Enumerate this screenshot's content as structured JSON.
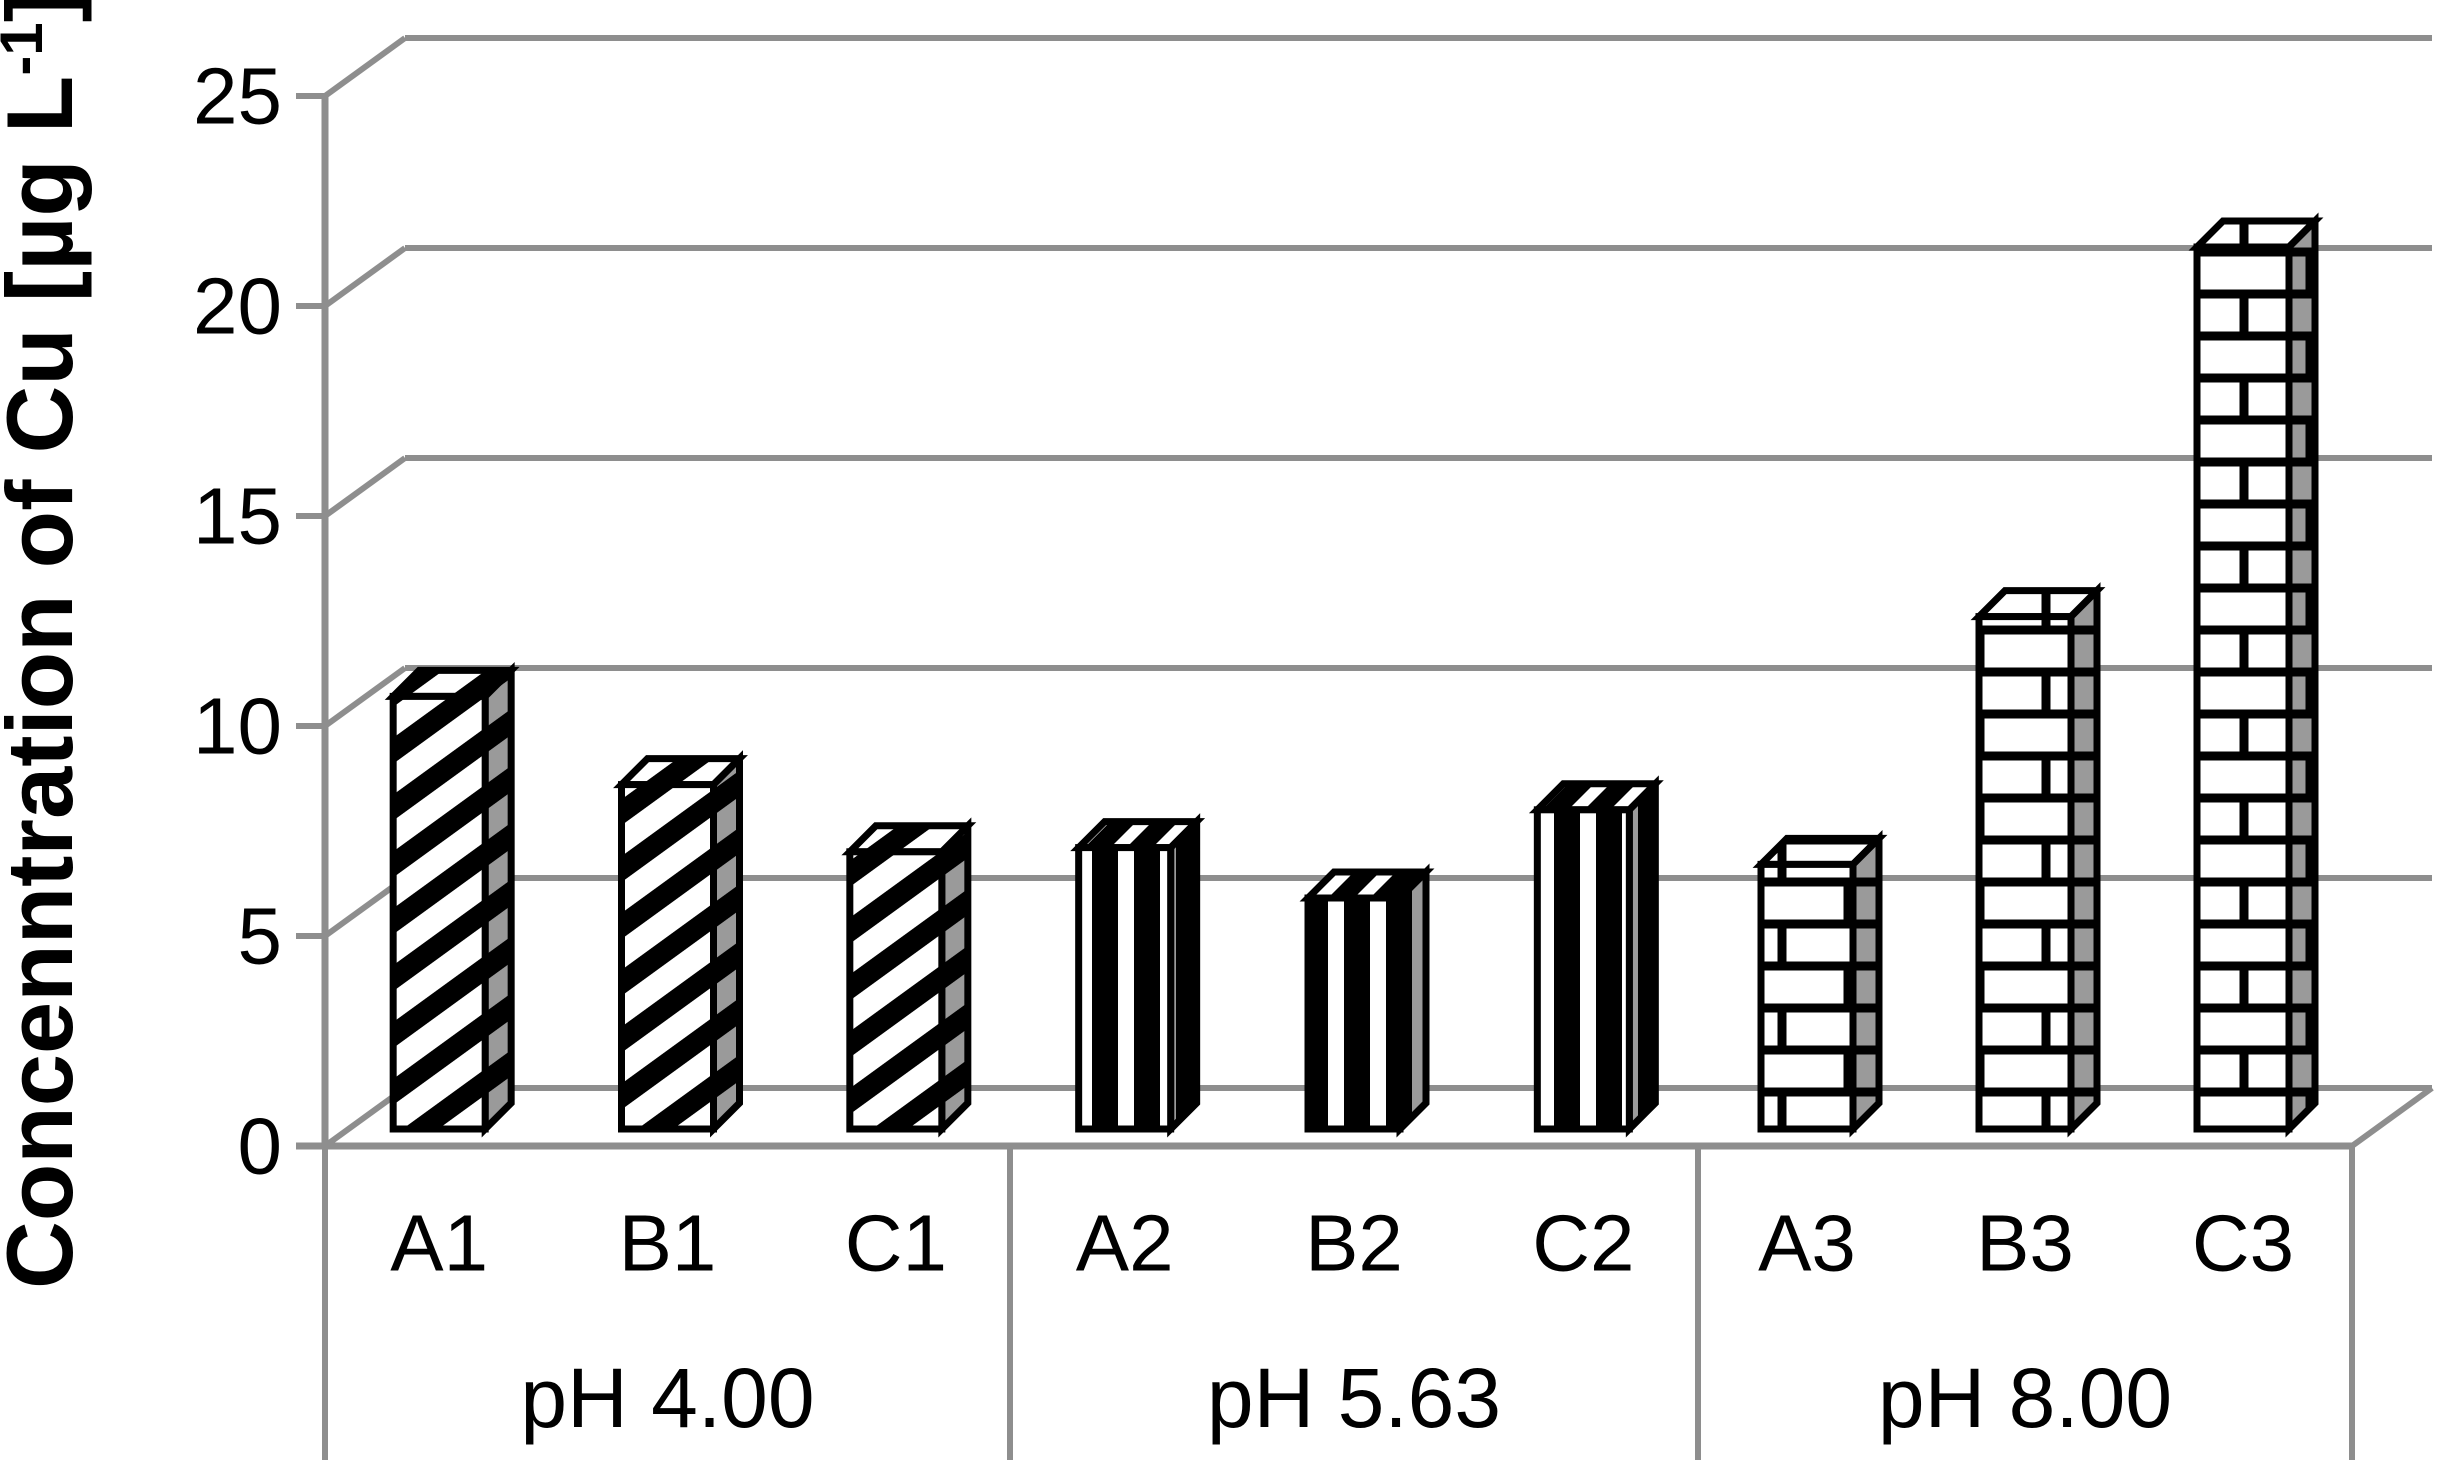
{
  "chart_data": {
    "type": "bar",
    "style": "3d-column-excel",
    "title": "",
    "ylabel": "Concenntration of Cu [µg L-1]",
    "ylabel_main": "Concenntration of Cu [µg L",
    "ylabel_sup": "-1",
    "ylabel_close": "]",
    "xlabel": "",
    "ylim": [
      0,
      25
    ],
    "yticks": [
      0,
      5,
      10,
      15,
      20,
      25
    ],
    "ytick_labels": [
      "0",
      "5",
      "10",
      "15",
      "20",
      "25"
    ],
    "grid": "horizontal-back-wall",
    "legend": "none",
    "categories": [
      "A1",
      "B1",
      "C1",
      "A2",
      "B2",
      "C2",
      "A3",
      "B3",
      "C3"
    ],
    "values": [
      10.3,
      8.2,
      6.6,
      6.7,
      5.5,
      7.6,
      6.3,
      12.2,
      21.0
    ],
    "groups": [
      {
        "label": "pH 4.00",
        "pattern": "diagonal",
        "bars": [
          {
            "label": "A1",
            "value": 10.3
          },
          {
            "label": "B1",
            "value": 8.2
          },
          {
            "label": "C1",
            "value": 6.6
          }
        ]
      },
      {
        "label": "pH 5.63",
        "pattern": "vertical",
        "bars": [
          {
            "label": "A2",
            "value": 6.7
          },
          {
            "label": "B2",
            "value": 5.5
          },
          {
            "label": "C2",
            "value": 7.6
          }
        ]
      },
      {
        "label": "pH 8.00",
        "pattern": "brick",
        "bars": [
          {
            "label": "A3",
            "value": 6.3
          },
          {
            "label": "B3",
            "value": 12.2
          },
          {
            "label": "C3",
            "value": 21.0
          }
        ]
      }
    ],
    "colors": {
      "grid_line": "#8e8e8e",
      "axis_line": "#8e8e8e",
      "bar_outline": "#000000",
      "bar_front_bg": "#ffffff",
      "bar_side_bg": "#9a9a9a",
      "text": "#000000",
      "background": "#ffffff"
    }
  }
}
